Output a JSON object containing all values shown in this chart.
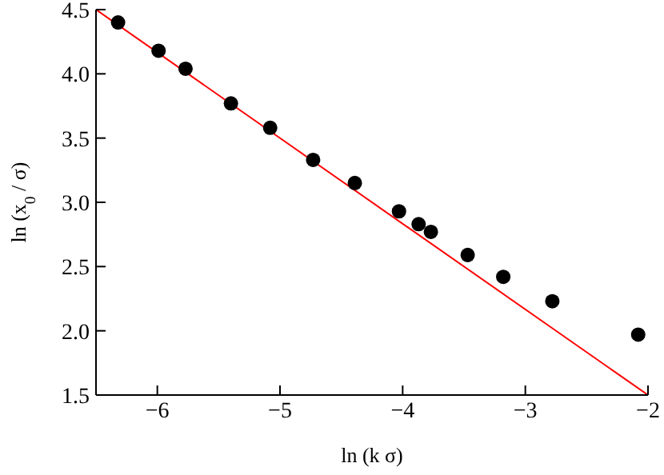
{
  "chart_data": {
    "type": "scatter",
    "xlabel": "ln (k σ)",
    "ylabel": "ln (x$_{0}$ / σ)",
    "xlim": [
      -6.5,
      -2
    ],
    "xticks": [
      -6,
      -5,
      -4,
      -3,
      -2
    ],
    "ylim": [
      1.5,
      4.5
    ],
    "yticks": [
      1.5,
      {
        "value": 2,
        "label": "2.0"
      },
      2.5,
      {
        "value": 3,
        "label": "3.0"
      },
      3.5,
      {
        "value": 4,
        "label": "4.0"
      },
      4.5
    ],
    "grid": false,
    "marker": "circle",
    "series": [
      {
        "color": "#000000",
        "x": [
          -6.32,
          -5.99,
          -5.77,
          -5.4,
          -5.08,
          -4.73,
          -4.39,
          -4.03,
          -3.87,
          -3.77,
          -3.47,
          -3.18,
          -2.78,
          -2.08
        ],
        "values": [
          4.4,
          4.18,
          4.04,
          3.77,
          3.58,
          3.33,
          3.15,
          2.93,
          2.83,
          2.77,
          2.59,
          2.42,
          2.23,
          1.97
        ]
      },
      {
        "type": "line",
        "color": "#ff0000",
        "marker": "none",
        "x": [
          -6.5,
          -2
        ],
        "values": [
          4.5,
          1.5
        ]
      }
    ]
  }
}
